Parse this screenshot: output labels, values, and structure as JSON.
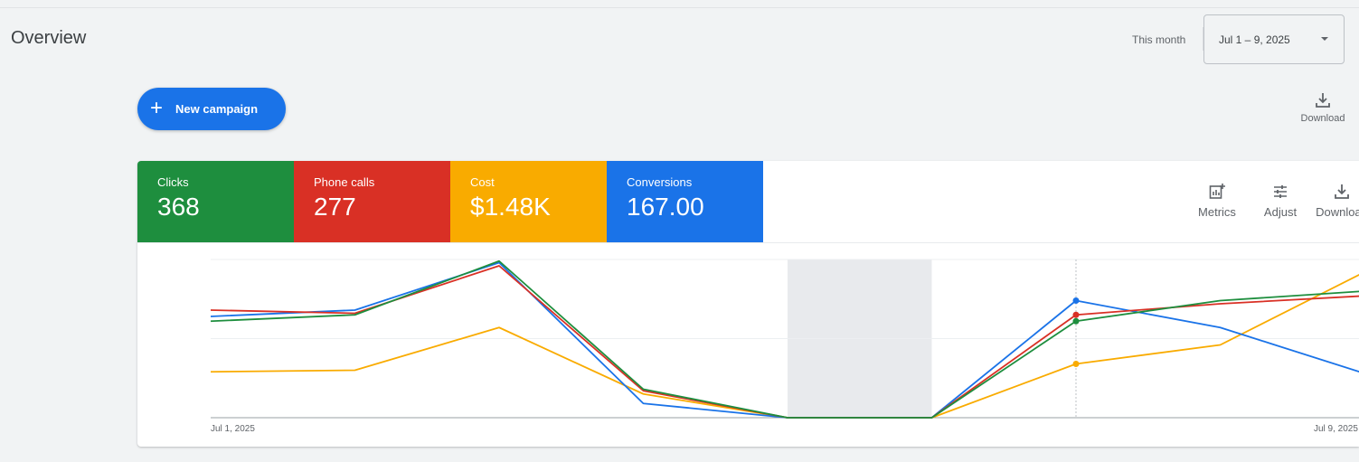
{
  "page": {
    "title": "Overview",
    "period_label": "This month",
    "date_range": "Jul 1 – 9, 2025"
  },
  "actions": {
    "new_campaign_label": "New campaign",
    "download_label": "Download"
  },
  "scorecards": [
    {
      "label": "Clicks",
      "value": "368",
      "color": "#1e8e3e"
    },
    {
      "label": "Phone calls",
      "value": "277",
      "color": "#d93025"
    },
    {
      "label": "Cost",
      "value": "$1.48K",
      "color": "#f9ab00"
    },
    {
      "label": "Conversions",
      "value": "167.00",
      "color": "#1a73e8"
    }
  ],
  "chart_toolbar": {
    "metrics_label": "Metrics",
    "adjust_label": "Adjust",
    "download_label": "Download"
  },
  "icons": {
    "add": "plus-icon",
    "download": "download-icon",
    "metrics": "add-chart-icon",
    "adjust": "tune-icon",
    "dropdown": "caret-down-icon"
  },
  "chart_data": {
    "type": "line",
    "x": [
      "Jul 1, 2025",
      "Jul 2, 2025",
      "Jul 3, 2025",
      "Jul 4, 2025",
      "Jul 5, 2025",
      "Jul 6, 2025",
      "Jul 7, 2025",
      "Jul 8, 2025",
      "Jul 9, 2025"
    ],
    "tick_labels": [
      "Jul 1, 2025",
      "Jul 9, 2025"
    ],
    "y_range": [
      0,
      100
    ],
    "normalized_values": true,
    "highlighted_range": [
      "Jul 5, 2025",
      "Jul 6, 2025"
    ],
    "hover_index": 6,
    "series": [
      {
        "values": [
          64,
          68,
          98,
          9,
          0,
          0,
          74,
          57,
          28
        ],
        "color": "#1a73e8"
      },
      {
        "values": [
          68,
          66,
          96,
          17,
          0,
          0,
          65,
          72,
          77
        ],
        "color": "#d93025"
      },
      {
        "values": [
          61,
          65,
          99,
          18,
          0,
          0,
          61,
          74,
          80
        ],
        "color": "#1e8e3e"
      },
      {
        "values": [
          29,
          30,
          57,
          15,
          0,
          0,
          34,
          46,
          92
        ],
        "color": "#f9ab00"
      }
    ],
    "grid": true,
    "legend": "none"
  }
}
